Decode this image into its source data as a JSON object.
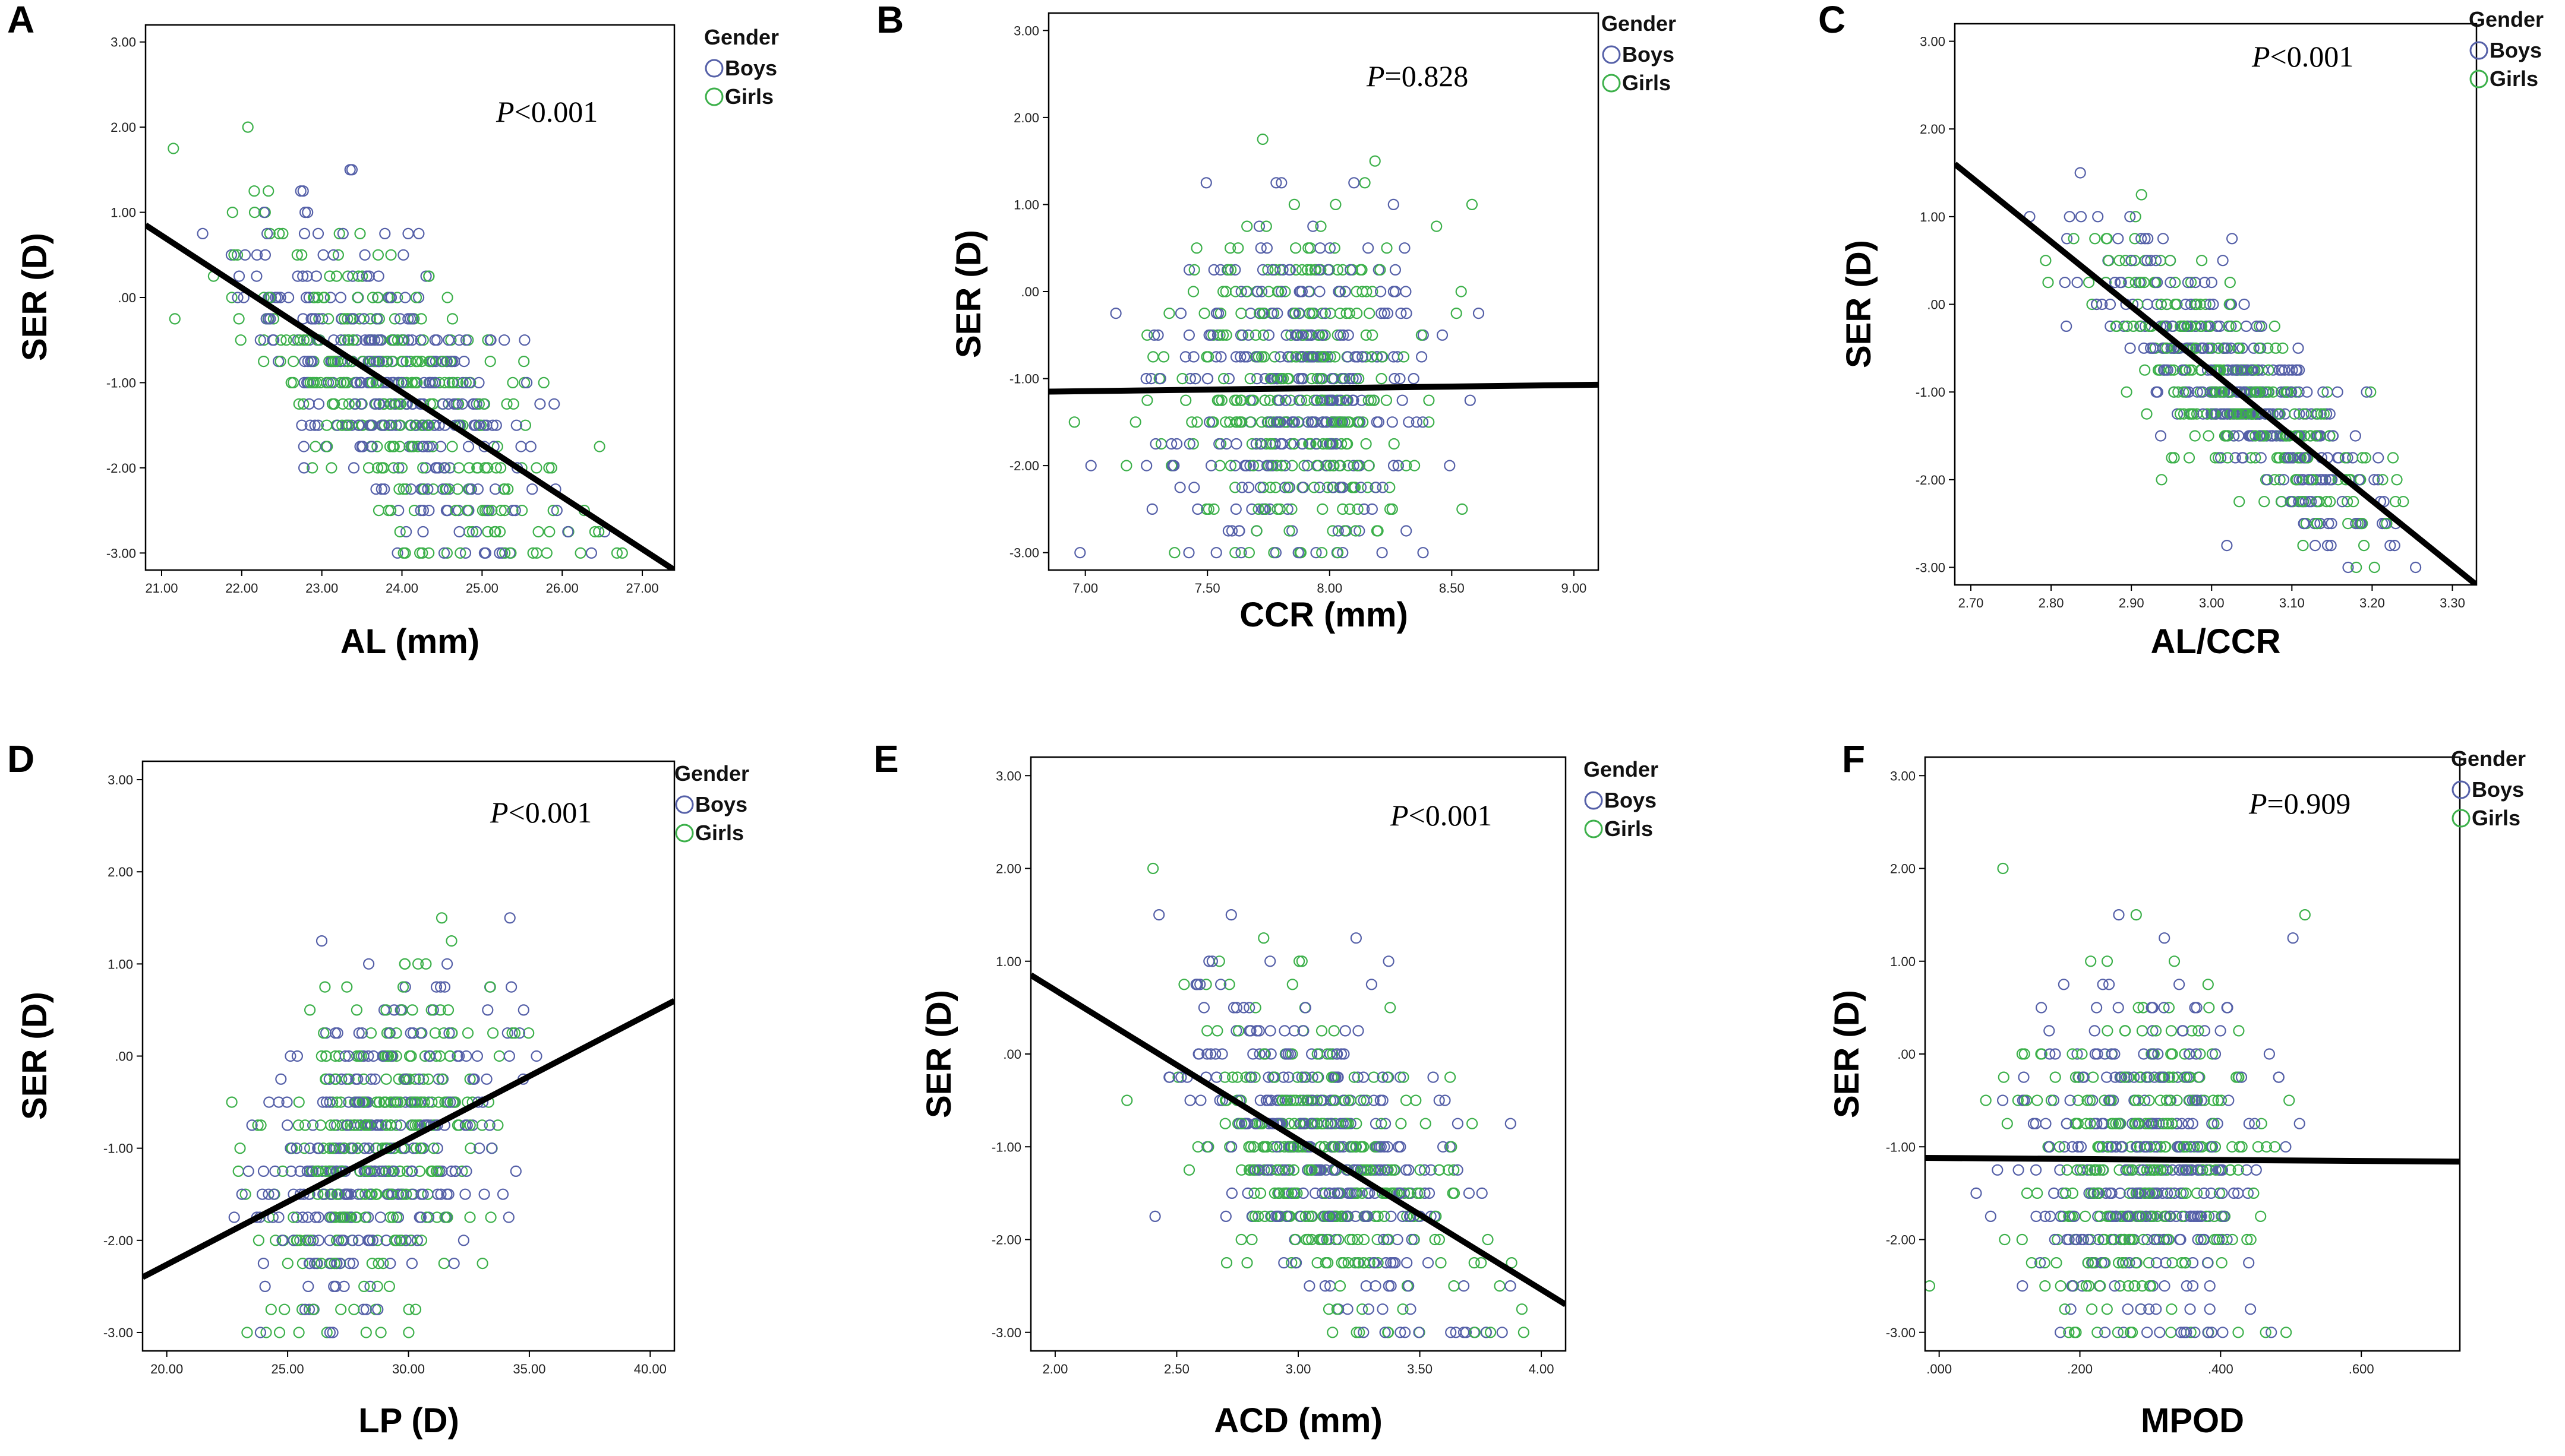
{
  "colors": {
    "boys": "#5560a8",
    "girls": "#3cb04a",
    "line": "#000000"
  },
  "legend": {
    "title": "Gender",
    "boys_label": "Boys",
    "girls_label": "Girls"
  },
  "chart_data": [
    {
      "id": "A",
      "type": "scatter",
      "panel_letter": "A",
      "xlabel": "AL (mm)",
      "ylabel": "SER (D)",
      "p_prefix": "P",
      "p_suffix": "<0.001",
      "xlim": [
        20.8,
        27.4
      ],
      "ylim": [
        -3.2,
        3.2
      ],
      "x_ticks": [
        "21.00",
        "22.00",
        "23.00",
        "24.00",
        "25.00",
        "26.00",
        "27.00"
      ],
      "y_ticks": [
        "3.00",
        "2.00",
        "1.00",
        ".00",
        "-1.00",
        "-2.00",
        "-3.00"
      ],
      "x_tick_values": [
        21,
        22,
        23,
        24,
        25,
        26,
        27
      ],
      "y_tick_values": [
        3,
        2,
        1,
        0,
        -1,
        -2,
        -3
      ],
      "regression": {
        "x1": 20.8,
        "y1": 0.85,
        "x2": 27.4,
        "y2": -3.2
      },
      "cloud": {
        "x_center": 23.9,
        "x_sd": 0.95,
        "slope": -0.62,
        "y_sd": 0.75
      },
      "series": [
        {
          "name": "Boys"
        },
        {
          "name": "Girls"
        }
      ]
    },
    {
      "id": "B",
      "type": "scatter",
      "panel_letter": "B",
      "xlabel": "CCR (mm)",
      "ylabel": "SER (D)",
      "p_prefix": "P",
      "p_suffix": "=0.828",
      "xlim": [
        6.85,
        9.1
      ],
      "ylim": [
        -3.2,
        3.2
      ],
      "x_ticks": [
        "7.00",
        "7.50",
        "8.00",
        "8.50",
        "9.00"
      ],
      "y_ticks": [
        "3.00",
        "2.00",
        "1.00",
        ".00",
        "-1.00",
        "-2.00",
        "-3.00"
      ],
      "x_tick_values": [
        7,
        7.5,
        8,
        8.5,
        9
      ],
      "y_tick_values": [
        3,
        2,
        1,
        0,
        -1,
        -2,
        -3
      ],
      "regression": {
        "x1": 6.85,
        "y1": -1.15,
        "x2": 9.1,
        "y2": -1.07
      },
      "cloud": {
        "x_center": 7.85,
        "x_sd": 0.27,
        "slope": 0.0,
        "y_sd": 0.95
      },
      "series": [
        {
          "name": "Boys"
        },
        {
          "name": "Girls"
        }
      ]
    },
    {
      "id": "C",
      "type": "scatter",
      "panel_letter": "C",
      "xlabel": "AL/CCR",
      "ylabel": "SER (D)",
      "p_prefix": "P",
      "p_suffix": "<0.001",
      "xlim": [
        2.68,
        3.33
      ],
      "ylim": [
        -3.2,
        3.2
      ],
      "x_ticks": [
        "2.70",
        "2.80",
        "2.90",
        "3.00",
        "3.10",
        "3.20",
        "3.30"
      ],
      "y_ticks": [
        "3.00",
        "2.00",
        "1.00",
        ".00",
        "-1.00",
        "-2.00",
        "-3.00"
      ],
      "x_tick_values": [
        2.7,
        2.8,
        2.9,
        3.0,
        3.1,
        3.2,
        3.3
      ],
      "y_tick_values": [
        3,
        2,
        1,
        0,
        -1,
        -2,
        -3
      ],
      "regression": {
        "x1": 2.68,
        "y1": 1.6,
        "x2": 3.33,
        "y2": -3.2
      },
      "cloud": {
        "x_center": 3.03,
        "x_sd": 0.09,
        "slope": -7.4,
        "y_sd": 0.5
      },
      "series": [
        {
          "name": "Boys"
        },
        {
          "name": "Girls"
        }
      ]
    },
    {
      "id": "D",
      "type": "scatter",
      "panel_letter": "D",
      "xlabel": "LP (D)",
      "ylabel": "SER (D)",
      "p_prefix": "P",
      "p_suffix": "<0.001",
      "xlim": [
        19,
        41
      ],
      "ylim": [
        -3.2,
        3.2
      ],
      "x_ticks": [
        "20.00",
        "25.00",
        "30.00",
        "35.00",
        "40.00"
      ],
      "y_ticks": [
        "3.00",
        "2.00",
        "1.00",
        ".00",
        "-1.00",
        "-2.00",
        "-3.00"
      ],
      "x_tick_values": [
        20,
        25,
        30,
        35,
        40
      ],
      "y_tick_values": [
        3,
        2,
        1,
        0,
        -1,
        -2,
        -3
      ],
      "regression": {
        "x1": 19,
        "y1": -2.4,
        "x2": 41,
        "y2": 0.6
      },
      "cloud": {
        "x_center": 28.6,
        "x_sd": 2.4,
        "slope": 0.136,
        "y_sd": 0.85
      },
      "series": [
        {
          "name": "Boys"
        },
        {
          "name": "Girls"
        }
      ]
    },
    {
      "id": "E",
      "type": "scatter",
      "panel_letter": "E",
      "xlabel": "ACD (mm)",
      "ylabel": "SER (D)",
      "p_prefix": "P",
      "p_suffix": "<0.001",
      "xlim": [
        1.9,
        4.1
      ],
      "ylim": [
        -3.2,
        3.2
      ],
      "x_ticks": [
        "2.00",
        "2.50",
        "3.00",
        "3.50",
        "4.00"
      ],
      "y_ticks": [
        "3.00",
        "2.00",
        "1.00",
        ".00",
        "-1.00",
        "-2.00",
        "-3.00"
      ],
      "x_tick_values": [
        2.0,
        2.5,
        3.0,
        3.5,
        4.0
      ],
      "y_tick_values": [
        3,
        2,
        1,
        0,
        -1,
        -2,
        -3
      ],
      "regression": {
        "x1": 1.9,
        "y1": 0.85,
        "x2": 4.1,
        "y2": -2.7
      },
      "cloud": {
        "x_center": 3.1,
        "x_sd": 0.28,
        "slope": -1.6,
        "y_sd": 0.8
      },
      "series": [
        {
          "name": "Boys"
        },
        {
          "name": "Girls"
        }
      ]
    },
    {
      "id": "F",
      "type": "scatter",
      "panel_letter": "F",
      "xlabel": "MPOD",
      "ylabel": "SER (D)",
      "p_prefix": "P",
      "p_suffix": "=0.909",
      "xlim": [
        -0.02,
        0.74
      ],
      "ylim": [
        -3.2,
        3.2
      ],
      "x_ticks": [
        ".000",
        ".200",
        ".400",
        ".600"
      ],
      "y_ticks": [
        "3.00",
        "2.00",
        "1.00",
        ".00",
        "-1.00",
        "-2.00",
        "-3.00"
      ],
      "x_tick_values": [
        0.0,
        0.2,
        0.4,
        0.6
      ],
      "y_tick_values": [
        3,
        2,
        1,
        0,
        -1,
        -2,
        -3
      ],
      "regression": {
        "x1": -0.02,
        "y1": -1.12,
        "x2": 0.74,
        "y2": -1.16
      },
      "cloud": {
        "x_center": 0.28,
        "x_sd": 0.085,
        "slope": 0.0,
        "y_sd": 0.95
      },
      "series": [
        {
          "name": "Boys"
        },
        {
          "name": "Girls"
        }
      ]
    }
  ]
}
